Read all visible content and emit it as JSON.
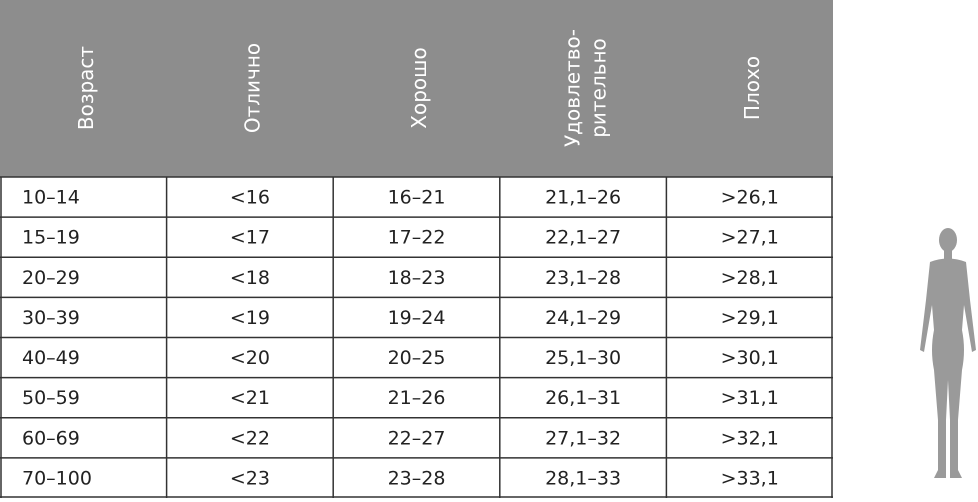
{
  "table": {
    "headers": [
      "Возраст",
      "Отлично",
      "Хорошо",
      [
        "Удовлетво-",
        "рительно"
      ],
      "Плохо"
    ],
    "rows": [
      [
        "10–14",
        "<16",
        "16–21",
        "21,1–26",
        ">26,1"
      ],
      [
        "15–19",
        "<17",
        "17–22",
        "22,1–27",
        ">27,1"
      ],
      [
        "20–29",
        "<18",
        "18–23",
        "23,1–28",
        ">28,1"
      ],
      [
        "30–39",
        "<19",
        "19–24",
        "24,1–29",
        ">29,1"
      ],
      [
        "40–49",
        "<20",
        "20–25",
        "25,1–30",
        ">30,1"
      ],
      [
        "50–59",
        "<21",
        "21–26",
        "26,1–31",
        ">31,1"
      ],
      [
        "60–69",
        "<22",
        "22–27",
        "27,1–32",
        ">32,1"
      ],
      [
        "70–100",
        "<23",
        "23–28",
        "28,1–33",
        ">33,1"
      ]
    ]
  }
}
